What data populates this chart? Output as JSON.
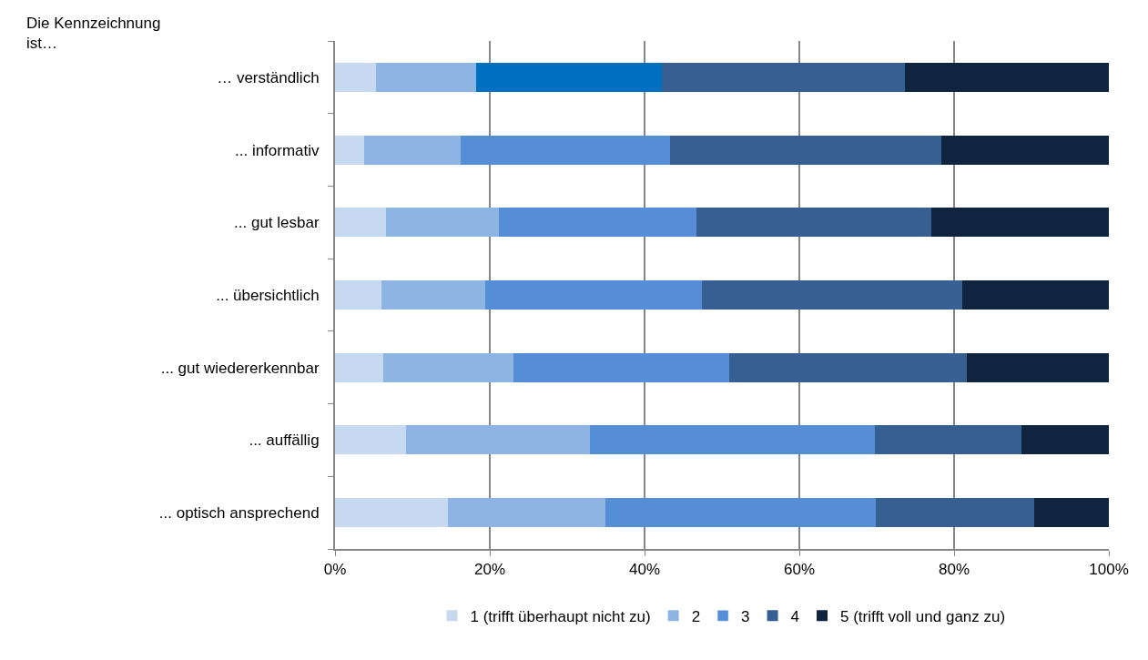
{
  "chart_data": {
    "type": "bar",
    "orientation": "horizontal",
    "stacked": true,
    "categories": [
      "… verständlich",
      "... informativ",
      "... gut lesbar",
      "... übersichtlich",
      "... gut wiedererkennbar",
      "... auffällig",
      "... optisch ansprechend"
    ],
    "series": [
      {
        "name": "1 (trifft überhaupt nicht zu)",
        "color": "#c6d9f1",
        "values": [
          5.3,
          3.8,
          6.6,
          6.0,
          6.2,
          9.2,
          14.6
        ]
      },
      {
        "name": "2",
        "color": "#8eb4e3",
        "values": [
          12.9,
          12.4,
          14.6,
          13.4,
          16.9,
          23.7,
          20.3
        ]
      },
      {
        "name": "3",
        "color": "#558ed5",
        "colors": [
          "#0070c0",
          "#558ed5",
          "#558ed5",
          "#558ed5",
          "#558ed5",
          "#558ed5",
          "#558ed5"
        ],
        "values": [
          24.0,
          27.1,
          25.5,
          28.0,
          27.8,
          36.9,
          35.0
        ]
      },
      {
        "name": "4",
        "color": "#376092",
        "values": [
          31.5,
          35.1,
          30.4,
          33.6,
          30.8,
          18.9,
          20.4
        ]
      },
      {
        "name": "5 (trifft voll und ganz zu)",
        "color": "#10243f",
        "values": [
          26.3,
          21.6,
          22.9,
          19.0,
          18.3,
          11.3,
          9.7
        ]
      }
    ],
    "xlim": [
      0,
      100
    ],
    "xticks": [
      {
        "value": 0,
        "label": "0%"
      },
      {
        "value": 20,
        "label": "20%"
      },
      {
        "value": 40,
        "label": "40%"
      },
      {
        "value": 60,
        "label": "60%"
      },
      {
        "value": 80,
        "label": "80%"
      },
      {
        "value": 100,
        "label": "100%"
      }
    ],
    "grid": "x",
    "legend": "bottom",
    "annotations": [
      "Die Kennzeichnung ist…"
    ]
  }
}
